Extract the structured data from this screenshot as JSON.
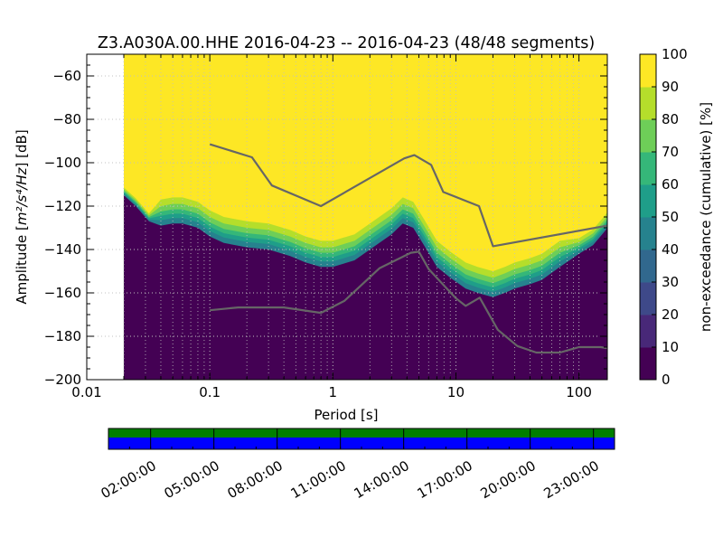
{
  "chart_data": {
    "type": "heatmap",
    "title": "Z3.A030A.00.HHE   2016-04-23 -- 2016-04-23  (48/48 segments)",
    "xlabel": "Period [s]",
    "ylabel_prefix": "Amplitude [",
    "ylabel_math": "m²/s⁴/Hz",
    "ylabel_suffix": "] [dB]",
    "x_scale": "log",
    "xlim": [
      0.01,
      170
    ],
    "ylim": [
      -200,
      -50
    ],
    "x_ticks": [
      {
        "value": 0.01,
        "label": "0.01"
      },
      {
        "value": 0.1,
        "label": "0.1"
      },
      {
        "value": 1,
        "label": "1"
      },
      {
        "value": 10,
        "label": "10"
      },
      {
        "value": 100,
        "label": "100"
      }
    ],
    "y_ticks": [
      {
        "value": -60,
        "label": "−60"
      },
      {
        "value": -80,
        "label": "−80"
      },
      {
        "value": -100,
        "label": "−100"
      },
      {
        "value": -120,
        "label": "−120"
      },
      {
        "value": -140,
        "label": "−140"
      },
      {
        "value": -160,
        "label": "−160"
      },
      {
        "value": -180,
        "label": "−180"
      },
      {
        "value": -200,
        "label": "−200"
      }
    ],
    "grid": true,
    "data_period_min": 0.02,
    "colormap": [
      "#440154",
      "#482878",
      "#3e4989",
      "#31688e",
      "#26828e",
      "#1f9e89",
      "#35b779",
      "#6ece58",
      "#b5de2b",
      "#fde725"
    ],
    "colorbar": {
      "label": "non-exceedance (cumulative) [%]",
      "range": [
        0,
        100
      ],
      "ticks": [
        "0",
        "10",
        "20",
        "30",
        "40",
        "50",
        "60",
        "70",
        "80",
        "90",
        "100"
      ]
    },
    "psd_floor": [
      [
        0.02,
        -115
      ],
      [
        0.025,
        -120
      ],
      [
        0.032,
        -127
      ],
      [
        0.04,
        -129
      ],
      [
        0.05,
        -128
      ],
      [
        0.06,
        -128
      ],
      [
        0.08,
        -130
      ],
      [
        0.1,
        -134
      ],
      [
        0.13,
        -137
      ],
      [
        0.2,
        -139
      ],
      [
        0.3,
        -140
      ],
      [
        0.45,
        -143
      ],
      [
        0.6,
        -146
      ],
      [
        0.8,
        -148
      ],
      [
        1.0,
        -148
      ],
      [
        1.5,
        -145
      ],
      [
        2.0,
        -140
      ],
      [
        3.0,
        -133
      ],
      [
        3.7,
        -128
      ],
      [
        4.5,
        -130
      ],
      [
        5.5,
        -138
      ],
      [
        7.0,
        -148
      ],
      [
        9.0,
        -153
      ],
      [
        12.0,
        -158
      ],
      [
        15.0,
        -160
      ],
      [
        20.0,
        -162
      ],
      [
        25.0,
        -160
      ],
      [
        30.0,
        -158
      ],
      [
        40.0,
        -156
      ],
      [
        50.0,
        -154
      ],
      [
        70.0,
        -148
      ],
      [
        100.0,
        -142
      ],
      [
        130.0,
        -138
      ],
      [
        160.0,
        -132
      ],
      [
        170.0,
        -130
      ]
    ],
    "reference_curves": [
      {
        "points": [
          [
            0.1,
            -91.5
          ],
          [
            0.22,
            -97.5
          ],
          [
            0.32,
            -110.5
          ],
          [
            0.8,
            -120
          ],
          [
            3.8,
            -98
          ],
          [
            4.6,
            -96.5
          ],
          [
            6.3,
            -101
          ],
          [
            7.9,
            -113.5
          ],
          [
            15.4,
            -120
          ],
          [
            20.0,
            -138.5
          ],
          [
            170.0,
            -129
          ]
        ]
      },
      {
        "points": [
          [
            0.1,
            -168
          ],
          [
            0.17,
            -166.7
          ],
          [
            0.4,
            -166.7
          ],
          [
            0.8,
            -169.2
          ],
          [
            1.24,
            -163.7
          ],
          [
            2.4,
            -148.6
          ],
          [
            4.3,
            -141.5
          ],
          [
            5.0,
            -141
          ],
          [
            6.0,
            -149
          ],
          [
            10.0,
            -162.5
          ],
          [
            12.0,
            -166
          ],
          [
            15.6,
            -162.2
          ],
          [
            21.9,
            -177
          ],
          [
            31.6,
            -184.5
          ],
          [
            45.0,
            -187.5
          ],
          [
            70.0,
            -187.5
          ],
          [
            100.0,
            -185
          ],
          [
            150.0,
            -185
          ],
          [
            170.0,
            -185.5
          ]
        ]
      }
    ]
  },
  "timeline": {
    "tick_labels": [
      "02:00:00",
      "05:00:00",
      "08:00:00",
      "11:00:00",
      "14:00:00",
      "17:00:00",
      "20:00:00",
      "23:00:00"
    ],
    "upper_bar_color": "#007f00",
    "lower_bar_color": "#0000ff"
  }
}
